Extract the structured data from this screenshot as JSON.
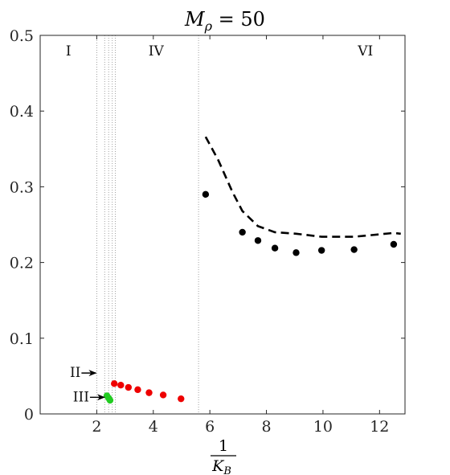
{
  "chart_data": {
    "type": "scatter",
    "title": {
      "symbol": "M",
      "subscript": "ρ",
      "rest": " = 50"
    },
    "xlabel": {
      "numerator": "1",
      "denominator": "K",
      "denominator_subscript": "B"
    },
    "ylabel": "",
    "xlim": [
      0,
      12.9
    ],
    "ylim": [
      0,
      0.5
    ],
    "xticks": [
      2,
      4,
      6,
      8,
      10,
      12
    ],
    "xtick_labels": [
      "2",
      "4",
      "6",
      "8",
      "10",
      "12"
    ],
    "yticks": [
      0,
      0.1,
      0.2,
      0.3,
      0.4,
      0.5
    ],
    "ytick_labels": [
      "0",
      "0.1",
      "0.2",
      "0.3",
      "0.4",
      "0.5"
    ],
    "grid": false,
    "region_boundaries": [
      2.0,
      2.28,
      2.42,
      2.55,
      2.66,
      5.6
    ],
    "region_labels": [
      {
        "text": "I",
        "x": 1.0,
        "y": 0.48
      },
      {
        "text": "IV",
        "x": 4.1,
        "y": 0.48
      },
      {
        "text": "VI",
        "x": 11.5,
        "y": 0.48
      }
    ],
    "annotations": [
      {
        "text": "II",
        "x": 2.0,
        "y": 0.054
      },
      {
        "text": "III",
        "x": 2.3,
        "y": 0.022
      }
    ],
    "series": [
      {
        "mode": "markers",
        "color": "#000000",
        "x": [
          5.85,
          7.15,
          7.7,
          8.3,
          9.05,
          9.95,
          11.1,
          12.5
        ],
        "y": [
          0.29,
          0.24,
          0.229,
          0.219,
          0.213,
          0.216,
          0.217,
          0.224
        ]
      },
      {
        "mode": "dashed-line",
        "color": "#000000",
        "x": [
          5.85,
          6.3,
          6.8,
          7.15,
          7.7,
          8.3,
          9.05,
          9.95,
          11.1,
          12.5,
          12.75
        ],
        "y": [
          0.366,
          0.335,
          0.293,
          0.268,
          0.248,
          0.24,
          0.238,
          0.234,
          0.234,
          0.239,
          0.238
        ]
      },
      {
        "mode": "markers",
        "color": "#ee0000",
        "x": [
          2.62,
          2.85,
          3.12,
          3.45,
          3.85,
          4.35,
          4.98
        ],
        "y": [
          0.04,
          0.038,
          0.035,
          0.032,
          0.028,
          0.025,
          0.02
        ]
      },
      {
        "mode": "markers",
        "color": "#22cc22",
        "x": [
          2.36,
          2.42,
          2.47
        ],
        "y": [
          0.024,
          0.021,
          0.018
        ]
      }
    ]
  }
}
